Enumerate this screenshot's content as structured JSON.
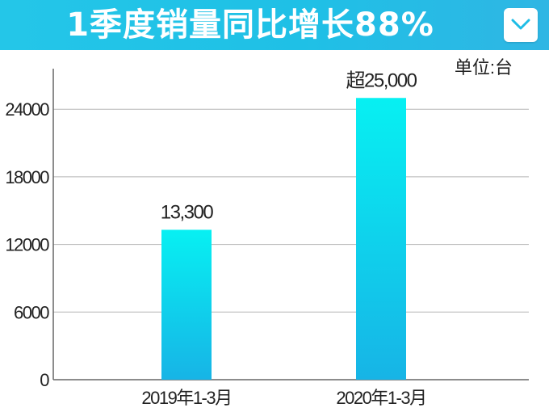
{
  "header": {
    "title": "1季度销量同比增长88%",
    "background_color": "#22c3e7",
    "dropdown_icon": "chevron-down-icon"
  },
  "chart_data": {
    "type": "bar",
    "categories": [
      "2019年1-3月",
      "2020年1-3月"
    ],
    "values": [
      13300,
      25000
    ],
    "data_labels": [
      "13,300",
      "超25,000"
    ],
    "unit_label": "单位:台",
    "yticks": [
      "0",
      "6000",
      "12000",
      "18000",
      "24000"
    ],
    "ylim": [
      0,
      27600
    ],
    "grid": true,
    "bar_gradient": [
      "#07f0f2",
      "#17b4e6"
    ]
  }
}
